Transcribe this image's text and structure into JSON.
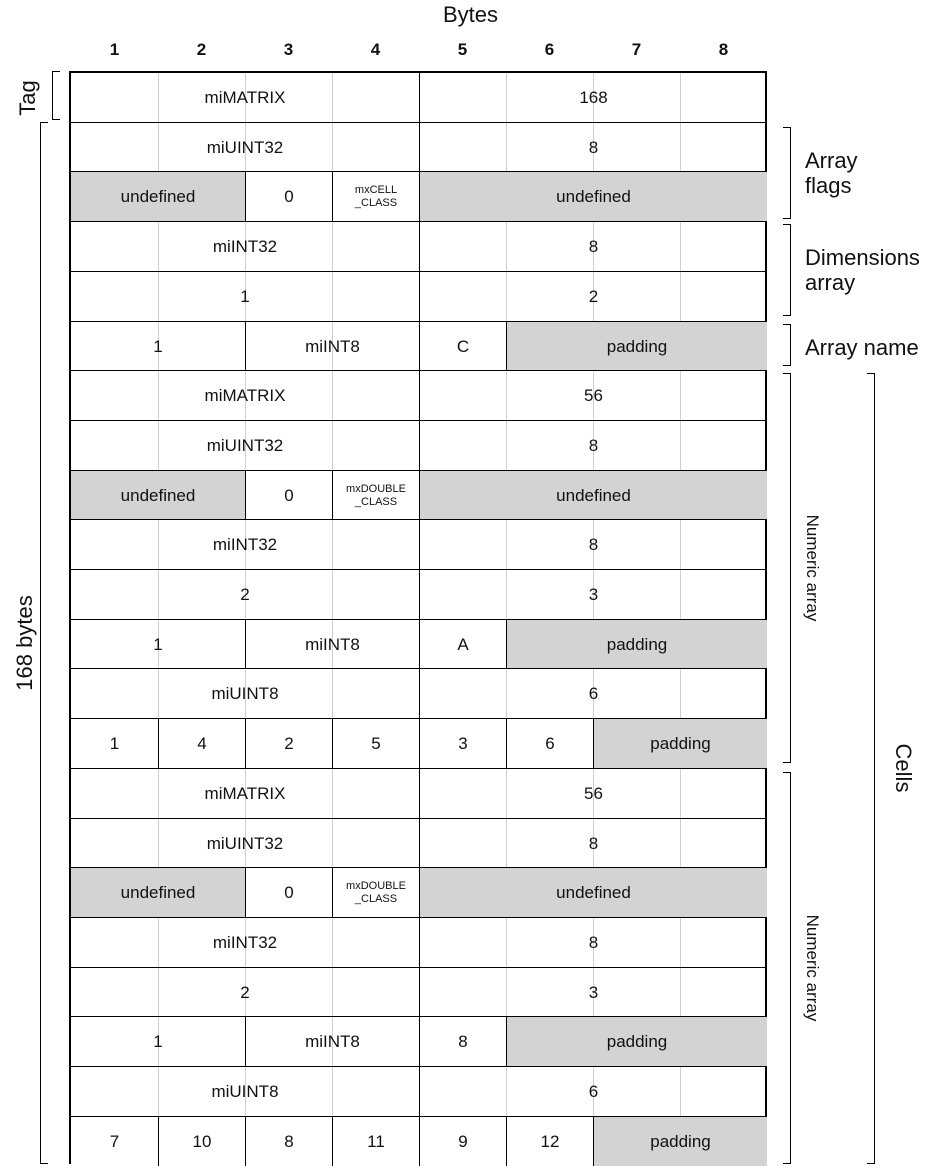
{
  "title": "Bytes",
  "column_numbers": [
    "1",
    "2",
    "3",
    "4",
    "5",
    "6",
    "7",
    "8"
  ],
  "left_labels": {
    "tag": "Tag",
    "total": "168 bytes"
  },
  "right_labels": {
    "array_flags": "Array\nflags",
    "dimensions_array": "Dimensions\narray",
    "array_name": "Array name",
    "numeric_array_1": "Numeric array",
    "numeric_array_2": "Numeric array",
    "cells": "Cells"
  },
  "rows": [
    [
      {
        "text": "miMATRIX",
        "span": [
          0,
          4
        ]
      },
      {
        "text": "168",
        "span": [
          4,
          8
        ]
      }
    ],
    [
      {
        "text": "miUINT32",
        "span": [
          0,
          4
        ]
      },
      {
        "text": "8",
        "span": [
          4,
          8
        ]
      }
    ],
    [
      {
        "text": "undefined",
        "span": [
          0,
          2
        ],
        "gray": true
      },
      {
        "text": "0",
        "span": [
          2,
          3
        ]
      },
      {
        "text": "mxCELL\n_CLASS",
        "span": [
          3,
          4
        ],
        "small": true
      },
      {
        "text": "undefined",
        "span": [
          4,
          8
        ],
        "gray": true
      }
    ],
    [
      {
        "text": "miINT32",
        "span": [
          0,
          4
        ]
      },
      {
        "text": "8",
        "span": [
          4,
          8
        ]
      }
    ],
    [
      {
        "text": "1",
        "span": [
          0,
          4
        ]
      },
      {
        "text": "2",
        "span": [
          4,
          8
        ]
      }
    ],
    [
      {
        "text": "1",
        "span": [
          0,
          2
        ]
      },
      {
        "text": "miINT8",
        "span": [
          2,
          4
        ]
      },
      {
        "text": "C",
        "span": [
          4,
          5
        ]
      },
      {
        "text": "padding",
        "span": [
          5,
          8
        ],
        "gray": true
      }
    ],
    [
      {
        "text": "miMATRIX",
        "span": [
          0,
          4
        ]
      },
      {
        "text": "56",
        "span": [
          4,
          8
        ]
      }
    ],
    [
      {
        "text": "miUINT32",
        "span": [
          0,
          4
        ]
      },
      {
        "text": "8",
        "span": [
          4,
          8
        ]
      }
    ],
    [
      {
        "text": "undefined",
        "span": [
          0,
          2
        ],
        "gray": true
      },
      {
        "text": "0",
        "span": [
          2,
          3
        ]
      },
      {
        "text": "mxDOUBLE\n_CLASS",
        "span": [
          3,
          4
        ],
        "small": true
      },
      {
        "text": "undefined",
        "span": [
          4,
          8
        ],
        "gray": true
      }
    ],
    [
      {
        "text": "miINT32",
        "span": [
          0,
          4
        ]
      },
      {
        "text": "8",
        "span": [
          4,
          8
        ]
      }
    ],
    [
      {
        "text": "2",
        "span": [
          0,
          4
        ]
      },
      {
        "text": "3",
        "span": [
          4,
          8
        ]
      }
    ],
    [
      {
        "text": "1",
        "span": [
          0,
          2
        ]
      },
      {
        "text": "miINT8",
        "span": [
          2,
          4
        ]
      },
      {
        "text": "A",
        "span": [
          4,
          5
        ]
      },
      {
        "text": "padding",
        "span": [
          5,
          8
        ],
        "gray": true
      }
    ],
    [
      {
        "text": "miUINT8",
        "span": [
          0,
          4
        ]
      },
      {
        "text": "6",
        "span": [
          4,
          8
        ]
      }
    ],
    [
      {
        "text": "1",
        "span": [
          0,
          1
        ]
      },
      {
        "text": "4",
        "span": [
          1,
          2
        ]
      },
      {
        "text": "2",
        "span": [
          2,
          3
        ]
      },
      {
        "text": "5",
        "span": [
          3,
          4
        ]
      },
      {
        "text": "3",
        "span": [
          4,
          5
        ]
      },
      {
        "text": "6",
        "span": [
          5,
          6
        ]
      },
      {
        "text": "padding",
        "span": [
          6,
          8
        ],
        "gray": true
      }
    ],
    [
      {
        "text": "miMATRIX",
        "span": [
          0,
          4
        ]
      },
      {
        "text": "56",
        "span": [
          4,
          8
        ]
      }
    ],
    [
      {
        "text": "miUINT32",
        "span": [
          0,
          4
        ]
      },
      {
        "text": "8",
        "span": [
          4,
          8
        ]
      }
    ],
    [
      {
        "text": "undefined",
        "span": [
          0,
          2
        ],
        "gray": true
      },
      {
        "text": "0",
        "span": [
          2,
          3
        ]
      },
      {
        "text": "mxDOUBLE\n_CLASS",
        "span": [
          3,
          4
        ],
        "small": true
      },
      {
        "text": "undefined",
        "span": [
          4,
          8
        ],
        "gray": true
      }
    ],
    [
      {
        "text": "miINT32",
        "span": [
          0,
          4
        ]
      },
      {
        "text": "8",
        "span": [
          4,
          8
        ]
      }
    ],
    [
      {
        "text": "2",
        "span": [
          0,
          4
        ]
      },
      {
        "text": "3",
        "span": [
          4,
          8
        ]
      }
    ],
    [
      {
        "text": "1",
        "span": [
          0,
          2
        ]
      },
      {
        "text": "miINT8",
        "span": [
          2,
          4
        ]
      },
      {
        "text": "8",
        "span": [
          4,
          5
        ]
      },
      {
        "text": "padding",
        "span": [
          5,
          8
        ],
        "gray": true
      }
    ],
    [
      {
        "text": "miUINT8",
        "span": [
          0,
          4
        ]
      },
      {
        "text": "6",
        "span": [
          4,
          8
        ]
      }
    ],
    [
      {
        "text": "7",
        "span": [
          0,
          1
        ]
      },
      {
        "text": "10",
        "span": [
          1,
          2
        ]
      },
      {
        "text": "8",
        "span": [
          2,
          3
        ]
      },
      {
        "text": "11",
        "span": [
          3,
          4
        ]
      },
      {
        "text": "9",
        "span": [
          4,
          5
        ]
      },
      {
        "text": "12",
        "span": [
          5,
          6
        ]
      },
      {
        "text": "padding",
        "span": [
          6,
          8
        ],
        "gray": true
      }
    ]
  ]
}
